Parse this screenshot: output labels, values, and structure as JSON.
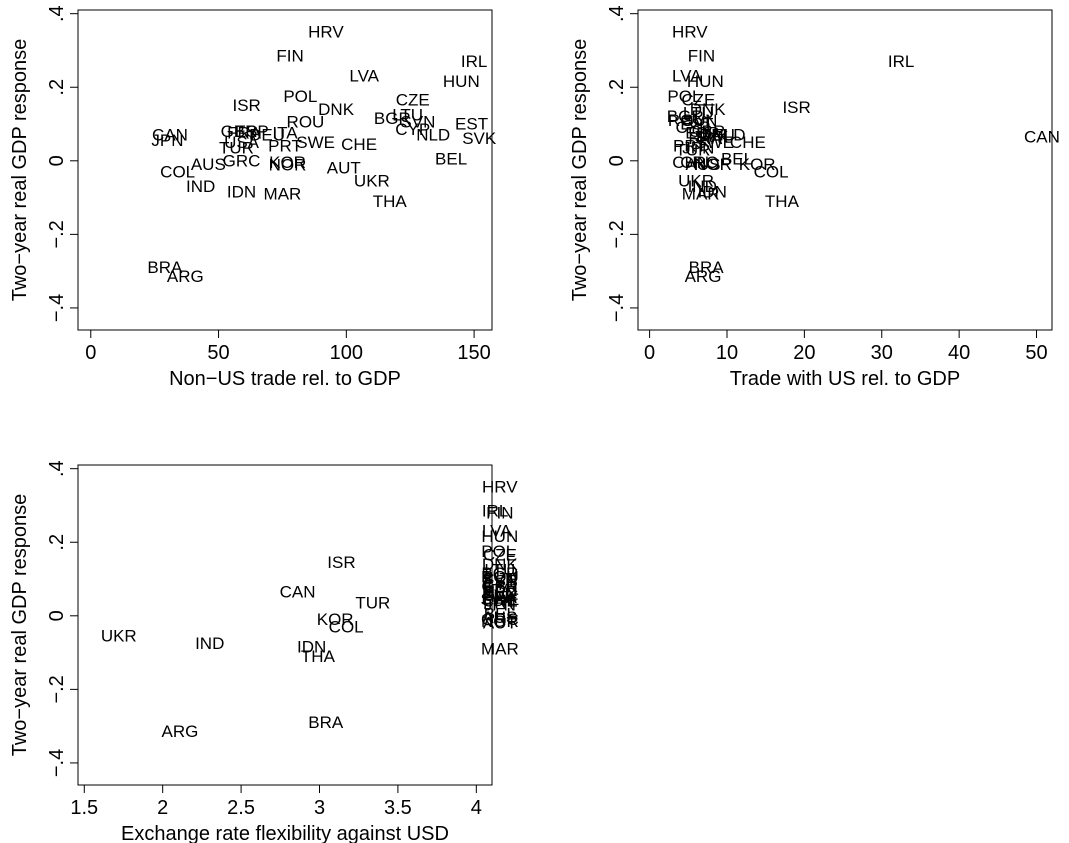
{
  "chart_data": [
    {
      "type": "scatter",
      "xlabel": "Non−US trade rel. to GDP",
      "ylabel": "Two−year real GDP response",
      "xlim": [
        -5,
        157
      ],
      "ylim": [
        -0.46,
        0.41
      ],
      "xticks": [
        0,
        50,
        100,
        150
      ],
      "xticklabels": [
        "0",
        "50",
        "100",
        "150"
      ],
      "yticks": [
        -0.4,
        -0.2,
        0,
        0.2,
        0.4
      ],
      "yticklabels": [
        "−.4",
        "−.2",
        "0",
        ".2",
        ".4"
      ],
      "grid": false,
      "points": [
        {
          "label": "HRV",
          "x": 92,
          "y": 0.35
        },
        {
          "label": "FIN",
          "x": 78,
          "y": 0.285
        },
        {
          "label": "LVA",
          "x": 107,
          "y": 0.23
        },
        {
          "label": "IRL",
          "x": 150,
          "y": 0.27
        },
        {
          "label": "HUN",
          "x": 145,
          "y": 0.215
        },
        {
          "label": "POL",
          "x": 82,
          "y": 0.175
        },
        {
          "label": "DNK",
          "x": 96,
          "y": 0.14
        },
        {
          "label": "CZE",
          "x": 126,
          "y": 0.165
        },
        {
          "label": "ISR",
          "x": 61,
          "y": 0.15
        },
        {
          "label": "ROU",
          "x": 84,
          "y": 0.105
        },
        {
          "label": "BGR",
          "x": 118,
          "y": 0.115
        },
        {
          "label": "LTU",
          "x": 124,
          "y": 0.125
        },
        {
          "label": "SVN",
          "x": 128,
          "y": 0.105
        },
        {
          "label": "EST",
          "x": 149,
          "y": 0.1
        },
        {
          "label": "CYP",
          "x": 126,
          "y": 0.085
        },
        {
          "label": "NLD",
          "x": 134,
          "y": 0.07
        },
        {
          "label": "SVK",
          "x": 152,
          "y": 0.06
        },
        {
          "label": "CAN",
          "x": 31,
          "y": 0.07
        },
        {
          "label": "JPN",
          "x": 30,
          "y": 0.055
        },
        {
          "label": "GBR",
          "x": 58,
          "y": 0.08
        },
        {
          "label": "ESP",
          "x": 63,
          "y": 0.08
        },
        {
          "label": "DEU",
          "x": 69,
          "y": 0.07
        },
        {
          "label": "FRA",
          "x": 60,
          "y": 0.075
        },
        {
          "label": "ITA",
          "x": 76,
          "y": 0.075
        },
        {
          "label": "USA",
          "x": 59,
          "y": 0.05
        },
        {
          "label": "PRT",
          "x": 76,
          "y": 0.04
        },
        {
          "label": "SWE",
          "x": 88,
          "y": 0.05
        },
        {
          "label": "CHE",
          "x": 105,
          "y": 0.045
        },
        {
          "label": "TUR",
          "x": 57,
          "y": 0.035
        },
        {
          "label": "AUS",
          "x": 46,
          "y": -0.01
        },
        {
          "label": "GRC",
          "x": 59,
          "y": 0.0
        },
        {
          "label": "KOR",
          "x": 77,
          "y": -0.005
        },
        {
          "label": "NOR",
          "x": 77,
          "y": -0.012
        },
        {
          "label": "AUT",
          "x": 99,
          "y": -0.02
        },
        {
          "label": "BEL",
          "x": 141,
          "y": 0.005
        },
        {
          "label": "COL",
          "x": 34,
          "y": -0.03
        },
        {
          "label": "UKR",
          "x": 110,
          "y": -0.055
        },
        {
          "label": "IND",
          "x": 43,
          "y": -0.07
        },
        {
          "label": "IDN",
          "x": 59,
          "y": -0.085
        },
        {
          "label": "MAR",
          "x": 75,
          "y": -0.09
        },
        {
          "label": "THA",
          "x": 117,
          "y": -0.11
        },
        {
          "label": "BRA",
          "x": 29,
          "y": -0.29
        },
        {
          "label": "ARG",
          "x": 37,
          "y": -0.315
        }
      ]
    },
    {
      "type": "scatter",
      "xlabel": "Trade with US rel. to GDP",
      "ylabel": "Two−year real GDP response",
      "xlim": [
        -1.5,
        52
      ],
      "ylim": [
        -0.46,
        0.41
      ],
      "xticks": [
        0,
        10,
        20,
        30,
        40,
        50
      ],
      "xticklabels": [
        "0",
        "10",
        "20",
        "30",
        "40",
        "50"
      ],
      "yticks": [
        -0.4,
        -0.2,
        0,
        0.2,
        0.4
      ],
      "yticklabels": [
        "−.4",
        "−.2",
        "0",
        ".2",
        ".4"
      ],
      "grid": false,
      "points": [
        {
          "label": "HRV",
          "x": 5.2,
          "y": 0.35
        },
        {
          "label": "FIN",
          "x": 6.7,
          "y": 0.285
        },
        {
          "label": "IRL",
          "x": 32.5,
          "y": 0.27
        },
        {
          "label": "LVA",
          "x": 4.8,
          "y": 0.23
        },
        {
          "label": "HUN",
          "x": 7.2,
          "y": 0.215
        },
        {
          "label": "POL",
          "x": 4.5,
          "y": 0.175
        },
        {
          "label": "CZE",
          "x": 6.3,
          "y": 0.165
        },
        {
          "label": "ISR",
          "x": 19.0,
          "y": 0.145
        },
        {
          "label": "DNK",
          "x": 7.5,
          "y": 0.14
        },
        {
          "label": "LTU",
          "x": 6.3,
          "y": 0.13
        },
        {
          "label": "BGR",
          "x": 4.6,
          "y": 0.12
        },
        {
          "label": "ROU",
          "x": 4.8,
          "y": 0.11
        },
        {
          "label": "SVN",
          "x": 6.5,
          "y": 0.11
        },
        {
          "label": "EST",
          "x": 6.1,
          "y": 0.1
        },
        {
          "label": "CYP",
          "x": 5.6,
          "y": 0.09
        },
        {
          "label": "NLD",
          "x": 10.2,
          "y": 0.07
        },
        {
          "label": "GBR",
          "x": 7.4,
          "y": 0.08
        },
        {
          "label": "ESP",
          "x": 6.8,
          "y": 0.075
        },
        {
          "label": "ITA",
          "x": 7.6,
          "y": 0.07
        },
        {
          "label": "SVK",
          "x": 8.0,
          "y": 0.065
        },
        {
          "label": "DEU",
          "x": 8.7,
          "y": 0.07
        },
        {
          "label": "FRA",
          "x": 7.2,
          "y": 0.06
        },
        {
          "label": "CAN",
          "x": 50.7,
          "y": 0.065
        },
        {
          "label": "SWE",
          "x": 8.4,
          "y": 0.05
        },
        {
          "label": "CHE",
          "x": 12.7,
          "y": 0.05
        },
        {
          "label": "PRT",
          "x": 5.2,
          "y": 0.04
        },
        {
          "label": "TUR",
          "x": 5.6,
          "y": 0.03
        },
        {
          "label": "JPN",
          "x": 6.3,
          "y": 0.035
        },
        {
          "label": "BEL",
          "x": 11.3,
          "y": 0.005
        },
        {
          "label": "CHN",
          "x": 5.3,
          "y": -0.005
        },
        {
          "label": "GRC",
          "x": 6.4,
          "y": -0.005
        },
        {
          "label": "AUS",
          "x": 6.9,
          "y": -0.01
        },
        {
          "label": "NOR",
          "x": 8.2,
          "y": -0.01
        },
        {
          "label": "KOR",
          "x": 13.9,
          "y": -0.01
        },
        {
          "label": "COL",
          "x": 15.7,
          "y": -0.03
        },
        {
          "label": "UKR",
          "x": 6.0,
          "y": -0.055
        },
        {
          "label": "IND",
          "x": 6.8,
          "y": -0.07
        },
        {
          "label": "IDN",
          "x": 8.1,
          "y": -0.085
        },
        {
          "label": "MAR",
          "x": 6.6,
          "y": -0.09
        },
        {
          "label": "THA",
          "x": 17.1,
          "y": -0.11
        },
        {
          "label": "BRA",
          "x": 7.3,
          "y": -0.29
        },
        {
          "label": "ARG",
          "x": 6.9,
          "y": -0.315
        }
      ]
    },
    {
      "type": "scatter",
      "xlabel": "Exchange rate flexibility against USD",
      "ylabel": "Two−year real GDP response",
      "xlim": [
        1.46,
        4.1
      ],
      "ylim": [
        -0.46,
        0.41
      ],
      "xticks": [
        1.5,
        2,
        2.5,
        3,
        3.5,
        4
      ],
      "xticklabels": [
        "1.5",
        "2",
        "2.5",
        "3",
        "3.5",
        "4"
      ],
      "yticks": [
        -0.4,
        -0.2,
        0,
        0.2,
        0.4
      ],
      "yticklabels": [
        "−.4",
        "−.2",
        "0",
        ".2",
        ".4"
      ],
      "grid": false,
      "points": [
        {
          "label": "UKR",
          "x": 1.72,
          "y": -0.055
        },
        {
          "label": "IND",
          "x": 2.3,
          "y": -0.075
        },
        {
          "label": "ARG",
          "x": 2.11,
          "y": -0.315
        },
        {
          "label": "ISR",
          "x": 3.14,
          "y": 0.145
        },
        {
          "label": "CAN",
          "x": 2.86,
          "y": 0.065
        },
        {
          "label": "TUR",
          "x": 3.34,
          "y": 0.035
        },
        {
          "label": "KOR",
          "x": 3.1,
          "y": -0.01
        },
        {
          "label": "COL",
          "x": 3.17,
          "y": -0.03
        },
        {
          "label": "IDN",
          "x": 2.95,
          "y": -0.085
        },
        {
          "label": "THA",
          "x": 2.99,
          "y": -0.11
        },
        {
          "label": "BRA",
          "x": 3.04,
          "y": -0.29
        },
        {
          "label": "HRV",
          "x": 4.15,
          "y": 0.35
        },
        {
          "label": "IRL",
          "x": 4.12,
          "y": 0.285
        },
        {
          "label": "FIN",
          "x": 4.15,
          "y": 0.28
        },
        {
          "label": "LVA",
          "x": 4.13,
          "y": 0.23
        },
        {
          "label": "HUN",
          "x": 4.15,
          "y": 0.215
        },
        {
          "label": "POL",
          "x": 4.14,
          "y": 0.175
        },
        {
          "label": "CZE",
          "x": 4.15,
          "y": 0.165
        },
        {
          "label": "DNK",
          "x": 4.15,
          "y": 0.14
        },
        {
          "label": "LTU",
          "x": 4.15,
          "y": 0.125
        },
        {
          "label": "BGR",
          "x": 4.15,
          "y": 0.115
        },
        {
          "label": "ROU",
          "x": 4.15,
          "y": 0.105
        },
        {
          "label": "SVN",
          "x": 4.15,
          "y": 0.1
        },
        {
          "label": "EST",
          "x": 4.15,
          "y": 0.095
        },
        {
          "label": "CYP",
          "x": 4.15,
          "y": 0.085
        },
        {
          "label": "GBR",
          "x": 4.15,
          "y": 0.08
        },
        {
          "label": "ESP",
          "x": 4.15,
          "y": 0.075
        },
        {
          "label": "ITA",
          "x": 4.15,
          "y": 0.07
        },
        {
          "label": "DEU",
          "x": 4.15,
          "y": 0.065
        },
        {
          "label": "NLD",
          "x": 4.15,
          "y": 0.06
        },
        {
          "label": "SVK",
          "x": 4.15,
          "y": 0.055
        },
        {
          "label": "FRA",
          "x": 4.15,
          "y": 0.05
        },
        {
          "label": "SWE",
          "x": 4.15,
          "y": 0.045
        },
        {
          "label": "CHE",
          "x": 4.15,
          "y": 0.04
        },
        {
          "label": "PRT",
          "x": 4.15,
          "y": 0.035
        },
        {
          "label": "JPN",
          "x": 4.15,
          "y": 0.03
        },
        {
          "label": "BEL",
          "x": 4.15,
          "y": 0.005
        },
        {
          "label": "AUS",
          "x": 4.15,
          "y": -0.005
        },
        {
          "label": "GRC",
          "x": 4.15,
          "y": -0.01
        },
        {
          "label": "NOR",
          "x": 4.15,
          "y": -0.015
        },
        {
          "label": "AUT",
          "x": 4.15,
          "y": -0.02
        },
        {
          "label": "MAR",
          "x": 4.15,
          "y": -0.09
        }
      ]
    }
  ]
}
